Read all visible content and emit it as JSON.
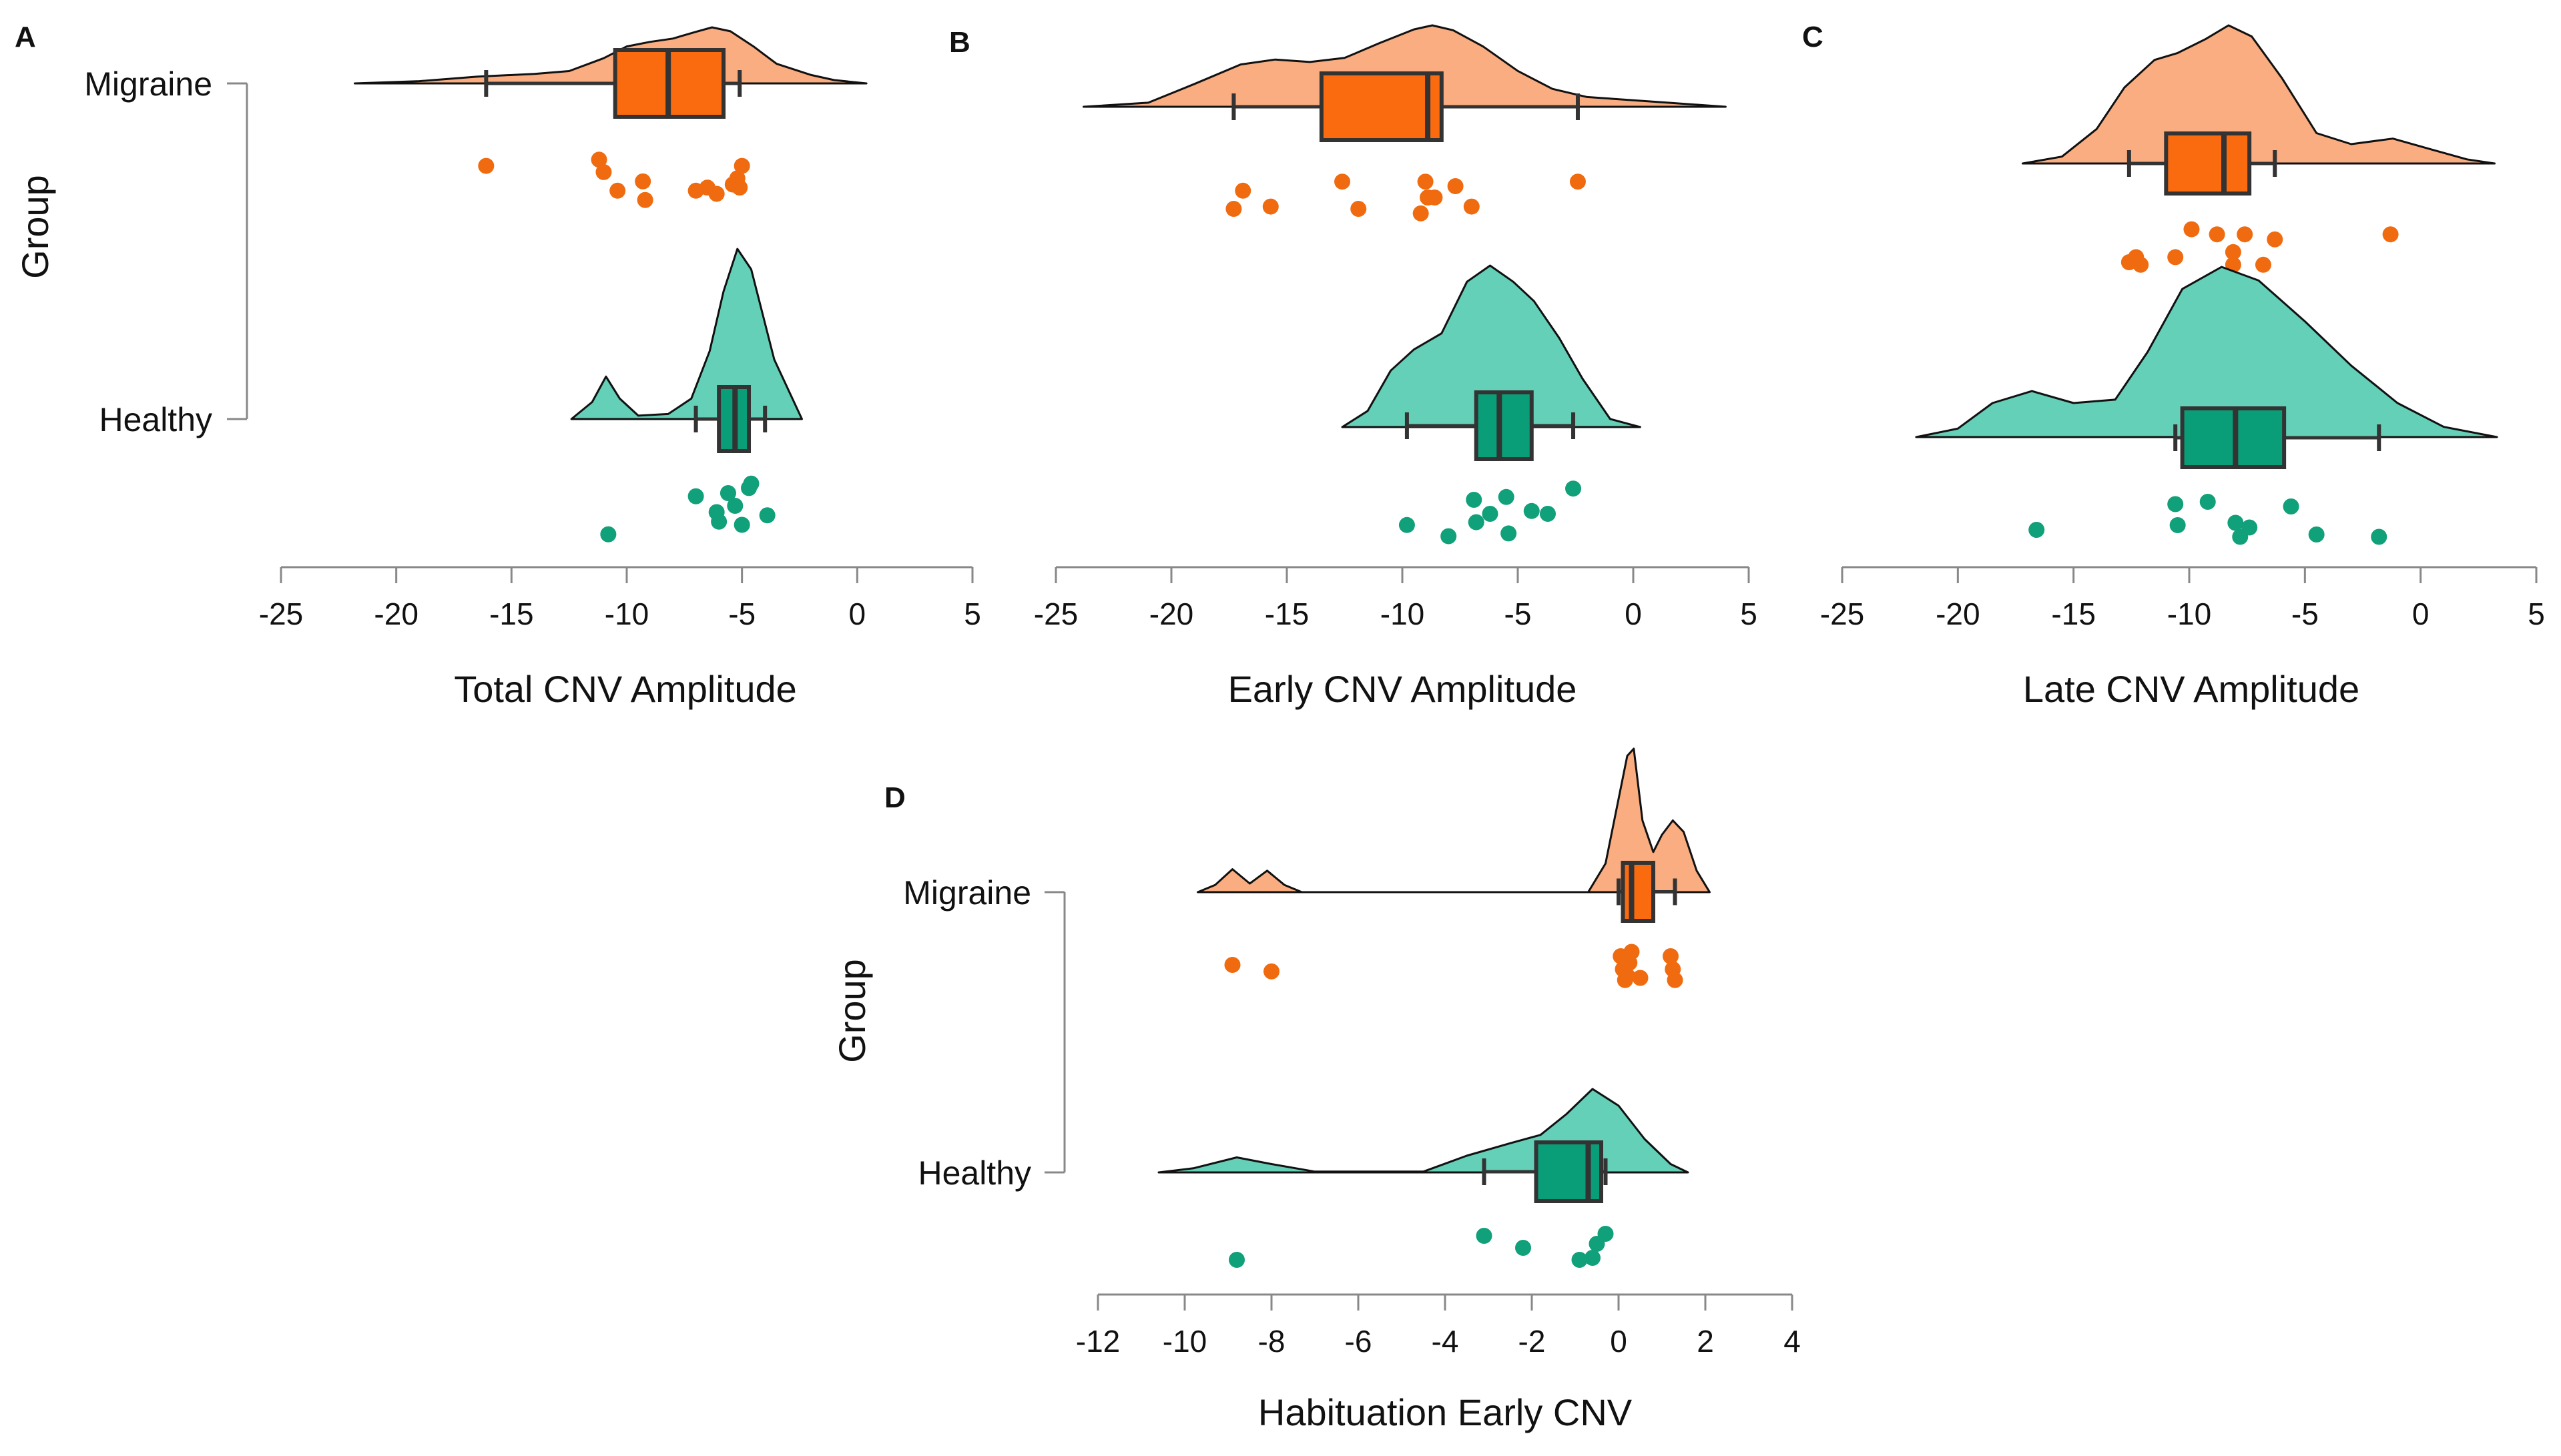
{
  "colors": {
    "migraine_density": "#f9ad80",
    "migraine_box": "#fa6b0f",
    "migraine_point": "#f06b10",
    "healthy_density": "#64d0b8",
    "healthy_box": "#0a9e78",
    "healthy_point": "#10a07a",
    "axis": "#888888",
    "outline": "#333333"
  },
  "chart_data": [
    {
      "panel": "A",
      "type": "raincloud",
      "xlabel": "Total CNV Amplitude",
      "ylabel": "Group",
      "xlim": [
        -25,
        5
      ],
      "xticks": [
        -25,
        -20,
        -15,
        -10,
        -5,
        0,
        5
      ],
      "xtick_labels": [
        "-25",
        "-20",
        "-15",
        "-10",
        "-5",
        "0",
        "5"
      ],
      "groups": [
        {
          "name": "Migraine",
          "density": [
            [
              -21.8,
              0
            ],
            [
              -19,
              0.04
            ],
            [
              -16.5,
              0.12
            ],
            [
              -14,
              0.17
            ],
            [
              -12.5,
              0.22
            ],
            [
              -11,
              0.45
            ],
            [
              -10,
              0.66
            ],
            [
              -9,
              0.74
            ],
            [
              -8,
              0.8
            ],
            [
              -7,
              0.92
            ],
            [
              -6.3,
              1.0
            ],
            [
              -5.5,
              0.93
            ],
            [
              -4.5,
              0.66
            ],
            [
              -3.5,
              0.35
            ],
            [
              -2,
              0.15
            ],
            [
              -1,
              0.06
            ],
            [
              0.4,
              0
            ]
          ],
          "box": {
            "q1": -10.5,
            "median": -8.2,
            "q3": -5.8,
            "whisker_low": -16.1,
            "whisker_high": -5.1
          },
          "points": [
            -16.1,
            -11.2,
            -11.0,
            -10.4,
            -9.3,
            -9.2,
            -7.0,
            -6.5,
            -6.1,
            -5.4,
            -5.2,
            -5.1,
            -5.0
          ],
          "jitter": [
            0.2,
            0.1,
            0.3,
            0.6,
            0.45,
            0.75,
            0.6,
            0.55,
            0.65,
            0.5,
            0.4,
            0.55,
            0.2
          ]
        },
        {
          "name": "Healthy",
          "density": [
            [
              -12.4,
              0
            ],
            [
              -11.5,
              0.1
            ],
            [
              -10.9,
              0.25
            ],
            [
              -10.3,
              0.12
            ],
            [
              -9.5,
              0.02
            ],
            [
              -8.2,
              0.03
            ],
            [
              -7.2,
              0.12
            ],
            [
              -6.4,
              0.4
            ],
            [
              -5.8,
              0.75
            ],
            [
              -5.2,
              1.0
            ],
            [
              -4.6,
              0.88
            ],
            [
              -3.6,
              0.35
            ],
            [
              -2.4,
              0
            ]
          ],
          "box": {
            "q1": -6.0,
            "median": -5.3,
            "q3": -4.7,
            "whisker_low": -7.0,
            "whisker_high": -4.0
          },
          "points": [
            -10.8,
            -7.0,
            -6.1,
            -6.0,
            -5.6,
            -5.3,
            -5.0,
            -4.7,
            -4.6,
            -3.9
          ],
          "jitter": [
            0.85,
            0.25,
            0.5,
            0.65,
            0.2,
            0.4,
            0.7,
            0.12,
            0.05,
            0.55
          ]
        }
      ]
    },
    {
      "panel": "B",
      "type": "raincloud",
      "xlabel": "Early CNV Amplitude",
      "ylabel": "",
      "xlim": [
        -25,
        5
      ],
      "xticks": [
        -25,
        -20,
        -15,
        -10,
        -5,
        0,
        5
      ],
      "xtick_labels": [
        "-25",
        "-20",
        "-15",
        "-10",
        "-5",
        "0",
        "5"
      ],
      "groups": [
        {
          "name": "Migraine",
          "density": [
            [
              -23.8,
              0
            ],
            [
              -21,
              0.05
            ],
            [
              -19,
              0.28
            ],
            [
              -17,
              0.52
            ],
            [
              -15.5,
              0.58
            ],
            [
              -14,
              0.55
            ],
            [
              -12.5,
              0.6
            ],
            [
              -11,
              0.78
            ],
            [
              -9.5,
              0.95
            ],
            [
              -8.7,
              1.0
            ],
            [
              -7.8,
              0.94
            ],
            [
              -6.5,
              0.74
            ],
            [
              -5,
              0.44
            ],
            [
              -3.5,
              0.22
            ],
            [
              -2,
              0.12
            ],
            [
              0,
              0.08
            ],
            [
              1.5,
              0.05
            ],
            [
              4,
              0
            ]
          ],
          "box": {
            "q1": -13.5,
            "median": -8.9,
            "q3": -8.3,
            "whisker_low": -17.3,
            "whisker_high": -2.4
          },
          "points": [
            -17.3,
            -16.9,
            -15.7,
            -12.6,
            -11.9,
            -9.2,
            -9.0,
            -8.9,
            -8.6,
            -7.7,
            -7.0,
            -2.4
          ],
          "jitter": [
            0.75,
            0.35,
            0.7,
            0.15,
            0.75,
            0.85,
            0.15,
            0.5,
            0.5,
            0.25,
            0.7,
            0.15
          ]
        },
        {
          "name": "Healthy",
          "density": [
            [
              -12.6,
              0
            ],
            [
              -11.5,
              0.1
            ],
            [
              -10.5,
              0.35
            ],
            [
              -9.5,
              0.48
            ],
            [
              -8.3,
              0.58
            ],
            [
              -7.2,
              0.9
            ],
            [
              -6.2,
              1.0
            ],
            [
              -5.2,
              0.9
            ],
            [
              -4.3,
              0.78
            ],
            [
              -3.2,
              0.55
            ],
            [
              -2.2,
              0.3
            ],
            [
              -1,
              0.05
            ],
            [
              0.3,
              0
            ]
          ],
          "box": {
            "q1": -6.8,
            "median": -5.8,
            "q3": -4.4,
            "whisker_low": -9.8,
            "whisker_high": -2.6
          },
          "points": [
            -9.8,
            -8.0,
            -6.9,
            -6.8,
            -6.2,
            -5.5,
            -5.4,
            -4.4,
            -3.7,
            -2.6
          ],
          "jitter": [
            0.7,
            0.9,
            0.25,
            0.65,
            0.5,
            0.2,
            0.85,
            0.45,
            0.5,
            0.05
          ]
        }
      ]
    },
    {
      "panel": "C",
      "type": "raincloud",
      "xlabel": "Late CNV Amplitude",
      "ylabel": "",
      "xlim": [
        -25,
        5
      ],
      "xticks": [
        -25,
        -20,
        -15,
        -10,
        -5,
        0,
        5
      ],
      "xtick_labels": [
        "-25",
        "-20",
        "-15",
        "-10",
        "-5",
        "0",
        "5"
      ],
      "groups": [
        {
          "name": "Migraine",
          "density": [
            [
              -17.2,
              0
            ],
            [
              -15.5,
              0.05
            ],
            [
              -14,
              0.25
            ],
            [
              -12.8,
              0.55
            ],
            [
              -11.5,
              0.75
            ],
            [
              -10.5,
              0.8
            ],
            [
              -9.3,
              0.9
            ],
            [
              -8.3,
              1.0
            ],
            [
              -7.3,
              0.92
            ],
            [
              -6,
              0.62
            ],
            [
              -4.5,
              0.22
            ],
            [
              -3,
              0.14
            ],
            [
              -1.2,
              0.18
            ],
            [
              0.5,
              0.1
            ],
            [
              2,
              0.03
            ],
            [
              3.2,
              0
            ]
          ],
          "box": {
            "q1": -11.0,
            "median": -8.5,
            "q3": -7.4,
            "whisker_low": -12.6,
            "whisker_high": -6.3
          },
          "points": [
            -12.6,
            -12.3,
            -12.1,
            -10.6,
            -9.9,
            -8.8,
            -8.1,
            -8.1,
            -7.6,
            -6.8,
            -6.3,
            -1.3
          ],
          "jitter": [
            0.75,
            0.65,
            0.8,
            0.65,
            0.1,
            0.2,
            0.55,
            0.8,
            0.2,
            0.8,
            0.3,
            0.2
          ]
        },
        {
          "name": "Healthy",
          "density": [
            [
              -21.8,
              0
            ],
            [
              -20,
              0.05
            ],
            [
              -18.5,
              0.2
            ],
            [
              -16.8,
              0.27
            ],
            [
              -15,
              0.2
            ],
            [
              -13.2,
              0.22
            ],
            [
              -11.8,
              0.5
            ],
            [
              -10.3,
              0.87
            ],
            [
              -8.6,
              1.0
            ],
            [
              -7,
              0.92
            ],
            [
              -5,
              0.68
            ],
            [
              -3,
              0.42
            ],
            [
              -1,
              0.2
            ],
            [
              1,
              0.06
            ],
            [
              3.3,
              0
            ]
          ],
          "box": {
            "q1": -10.3,
            "median": -8.0,
            "q3": -5.9,
            "whisker_low": -10.6,
            "whisker_high": -1.8
          },
          "points": [
            -16.6,
            -10.6,
            -10.5,
            -9.2,
            -8.0,
            -7.8,
            -7.4,
            -5.6,
            -4.5,
            -1.8
          ],
          "jitter": [
            0.7,
            0.15,
            0.6,
            0.1,
            0.55,
            0.85,
            0.65,
            0.2,
            0.8,
            0.85
          ]
        }
      ]
    },
    {
      "panel": "D",
      "type": "raincloud",
      "xlabel": "Habituation Early CNV",
      "ylabel": "Group",
      "xlim": [
        -12,
        4
      ],
      "xticks": [
        -12,
        -10,
        -8,
        -6,
        -4,
        -2,
        0,
        2,
        4
      ],
      "xtick_labels": [
        "-12",
        "-10",
        "-8",
        "-6",
        "-4",
        "-2",
        "0",
        "2",
        "4"
      ],
      "groups": [
        {
          "name": "Migraine",
          "density": [
            [
              -9.7,
              0
            ],
            [
              -9.3,
              0.05
            ],
            [
              -8.9,
              0.16
            ],
            [
              -8.5,
              0.06
            ],
            [
              -8.1,
              0.15
            ],
            [
              -7.7,
              0.05
            ],
            [
              -7.3,
              0
            ],
            [
              -0.7,
              0
            ],
            [
              -0.3,
              0.2
            ],
            [
              0,
              0.65
            ],
            [
              0.2,
              0.95
            ],
            [
              0.35,
              1.0
            ],
            [
              0.55,
              0.5
            ],
            [
              0.8,
              0.28
            ],
            [
              1.0,
              0.4
            ],
            [
              1.25,
              0.5
            ],
            [
              1.5,
              0.42
            ],
            [
              1.8,
              0.15
            ],
            [
              2.1,
              0
            ]
          ],
          "box": {
            "q1": 0.1,
            "median": 0.3,
            "q3": 0.8,
            "whisker_low": 0.0,
            "whisker_high": 1.3
          },
          "points": [
            -8.9,
            -8.0,
            0.05,
            0.1,
            0.15,
            0.2,
            0.25,
            0.3,
            0.5,
            1.2,
            1.25,
            1.3
          ],
          "jitter": [
            0.4,
            0.55,
            0.2,
            0.5,
            0.75,
            0.65,
            0.35,
            0.1,
            0.7,
            0.2,
            0.5,
            0.75
          ]
        },
        {
          "name": "Healthy",
          "density": [
            [
              -10.6,
              0
            ],
            [
              -9.8,
              0.05
            ],
            [
              -8.8,
              0.18
            ],
            [
              -8,
              0.1
            ],
            [
              -7,
              0.01
            ],
            [
              -4.5,
              0.01
            ],
            [
              -3.5,
              0.2
            ],
            [
              -2.5,
              0.35
            ],
            [
              -1.8,
              0.45
            ],
            [
              -1.2,
              0.7
            ],
            [
              -0.6,
              1.0
            ],
            [
              0,
              0.8
            ],
            [
              0.6,
              0.4
            ],
            [
              1.2,
              0.1
            ],
            [
              1.6,
              0
            ]
          ],
          "box": {
            "q1": -1.9,
            "median": -0.7,
            "q3": -0.4,
            "whisker_low": -3.1,
            "whisker_high": -0.3
          },
          "points": [
            -8.8,
            -3.1,
            -2.2,
            -0.9,
            -0.6,
            -0.5,
            -0.3
          ],
          "jitter": [
            0.8,
            0.2,
            0.5,
            0.8,
            0.75,
            0.4,
            0.15
          ]
        }
      ]
    }
  ]
}
